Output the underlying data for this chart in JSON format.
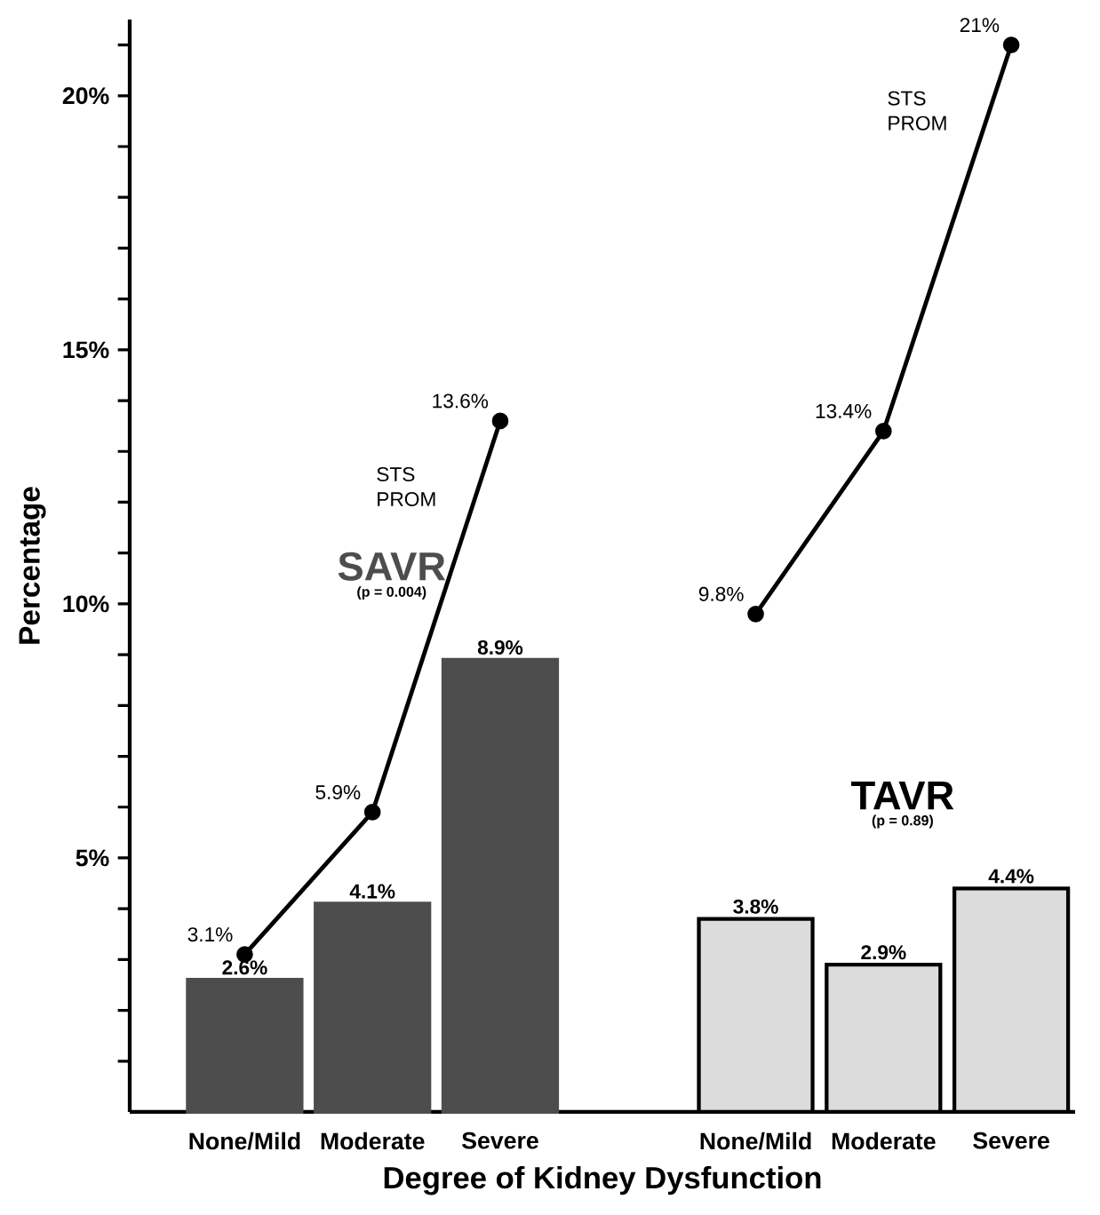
{
  "chart_data": {
    "type": "bar",
    "xlabel": "Degree of Kidney Dysfunction",
    "ylabel": "Percentage",
    "categories": [
      "None/Mild",
      "Moderate",
      "Severe",
      null,
      "None/Mild",
      "Moderate",
      "Severe"
    ],
    "series": [
      {
        "name": "SAVR",
        "color": "#4d4d4d",
        "values": [
          2.6,
          4.1,
          8.9,
          null,
          null,
          null,
          null
        ],
        "value_labels": [
          "2.6%",
          "4.1%",
          "8.9%",
          null,
          null,
          null,
          null
        ]
      },
      {
        "name": "TAVR",
        "color": "#dcdcdc",
        "values": [
          null,
          null,
          null,
          null,
          3.8,
          2.9,
          4.4
        ],
        "value_labels": [
          null,
          null,
          null,
          null,
          "3.8%",
          "2.9%",
          "4.4%"
        ]
      },
      {
        "name": "STS PROM",
        "type": "line",
        "color": "#000000",
        "values": [
          3.1,
          5.9,
          13.6,
          null,
          null,
          null,
          null
        ],
        "value_labels": [
          "3.1%",
          "5.9%",
          "13.6%",
          null,
          null,
          null,
          null
        ]
      },
      {
        "name": "STS PROM",
        "type": "line",
        "color": "#000000",
        "values": [
          null,
          null,
          null,
          null,
          9.8,
          13.4,
          21
        ],
        "value_labels": [
          null,
          null,
          null,
          null,
          "9.8%",
          "13.4%",
          "21%"
        ]
      }
    ],
    "annotations": [
      "(p = 0.004)",
      "(p = 0.89)"
    ],
    "marker": "circle",
    "ylim": [
      0,
      21.5
    ],
    "yticks": [
      {
        "value": 1,
        "label": null
      },
      {
        "value": 2,
        "label": null
      },
      {
        "value": 3,
        "label": null
      },
      {
        "value": 4,
        "label": null
      },
      {
        "value": 5,
        "label": "5%"
      },
      {
        "value": 6,
        "label": null
      },
      {
        "value": 7,
        "label": null
      },
      {
        "value": 8,
        "label": null
      },
      {
        "value": 9,
        "label": null
      },
      {
        "value": 10,
        "label": "10%"
      },
      {
        "value": 11,
        "label": null
      },
      {
        "value": 12,
        "label": null
      },
      {
        "value": 13,
        "label": null
      },
      {
        "value": 14,
        "label": null
      },
      {
        "value": 15,
        "label": "15%"
      },
      {
        "value": 16,
        "label": null
      },
      {
        "value": 17,
        "label": null
      },
      {
        "value": 18,
        "label": null
      },
      {
        "value": 19,
        "label": null
      },
      {
        "value": 20,
        "label": "20%"
      },
      {
        "value": 21,
        "label": null
      }
    ]
  }
}
